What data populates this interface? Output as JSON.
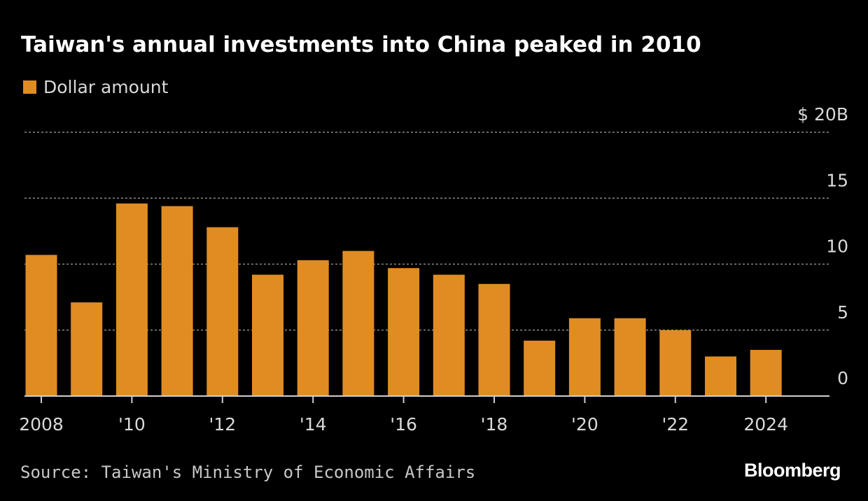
{
  "chart_data": {
    "type": "bar",
    "title": "Taiwan's annual investments into China peaked in 2010",
    "legend": [
      {
        "name": "Dollar amount",
        "color": "#e08c23"
      }
    ],
    "legend_placement": "top-left",
    "categories": [
      "2008",
      "2009",
      "2010",
      "2011",
      "2012",
      "2013",
      "2014",
      "2015",
      "2016",
      "2017",
      "2018",
      "2019",
      "2020",
      "2021",
      "2022",
      "2023",
      "2024"
    ],
    "values": [
      10.7,
      7.1,
      14.6,
      14.4,
      12.8,
      9.2,
      10.3,
      11.0,
      9.7,
      9.2,
      8.5,
      4.2,
      5.9,
      5.9,
      5.0,
      3.0,
      3.5
    ],
    "x_tick_labels": [
      {
        "year": "2008",
        "label": "2008"
      },
      {
        "year": "2010",
        "label": "'10"
      },
      {
        "year": "2012",
        "label": "'12"
      },
      {
        "year": "2014",
        "label": "'14"
      },
      {
        "year": "2016",
        "label": "'16"
      },
      {
        "year": "2018",
        "label": "'18"
      },
      {
        "year": "2020",
        "label": "'20"
      },
      {
        "year": "2022",
        "label": "'22"
      },
      {
        "year": "2024",
        "label": "2024"
      }
    ],
    "y_ticks": [
      {
        "value": 0,
        "label": "0"
      },
      {
        "value": 5,
        "label": "5"
      },
      {
        "value": 10,
        "label": "10"
      },
      {
        "value": 15,
        "label": "15"
      },
      {
        "value": 20,
        "label": "$ 20B"
      }
    ],
    "ylim": [
      0,
      20
    ],
    "xlabel": "",
    "ylabel": "",
    "grid": true,
    "unit": "USD billions",
    "bar_color": "#e08c23"
  },
  "source": "Source: Taiwan's Ministry of Economic Affairs",
  "brand": "Bloomberg"
}
